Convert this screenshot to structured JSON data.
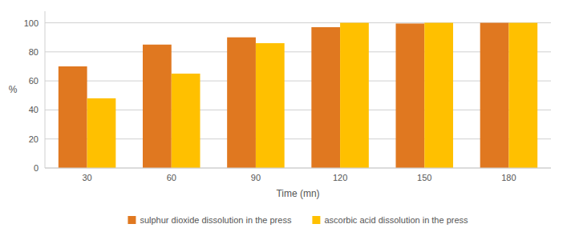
{
  "chart_data": {
    "type": "bar",
    "categories": [
      "30",
      "60",
      "90",
      "120",
      "150",
      "180"
    ],
    "series": [
      {
        "name": "sulphur dioxide dissolution in the press",
        "color": "#E07820",
        "values": [
          70,
          85,
          90,
          97,
          99.5,
          100
        ]
      },
      {
        "name": "ascorbic acid dissolution in the press",
        "color": "#FFC000",
        "values": [
          48,
          65,
          86,
          100,
          100,
          100
        ]
      }
    ],
    "xlabel": "Time (mn)",
    "ylabel": "%",
    "ylim": [
      0,
      108
    ],
    "yticks": [
      0,
      20,
      40,
      60,
      80,
      100
    ],
    "grid": true,
    "legend": "bottom"
  }
}
